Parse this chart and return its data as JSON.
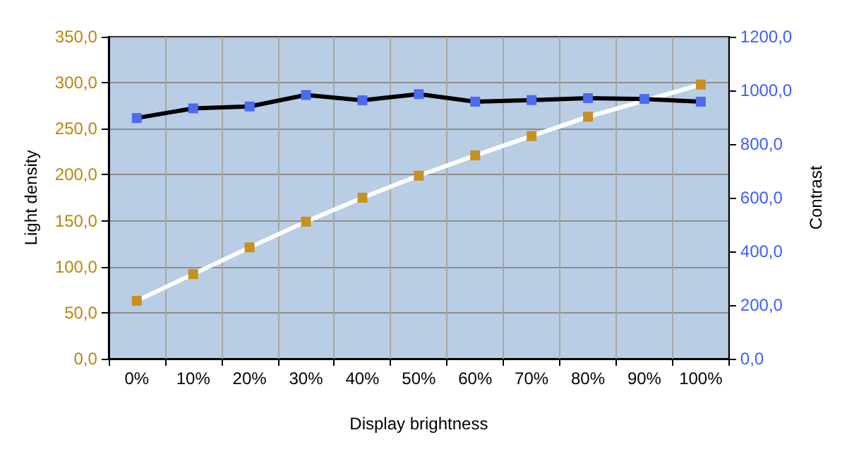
{
  "chart_data": {
    "type": "line",
    "xlabel": "Display brightness",
    "ylabel": "Light density",
    "y2label": "Contrast",
    "categories": [
      "0%",
      "10%",
      "20%",
      "30%",
      "40%",
      "50%",
      "60%",
      "70%",
      "80%",
      "90%",
      "100%"
    ],
    "series": [
      {
        "color": "#ffffff",
        "values": [
          63,
          92,
          121,
          149,
          175,
          199,
          221,
          242,
          263,
          null,
          298
        ]
      },
      {
        "color": "#000000",
        "axis": "y2",
        "values": [
          897,
          933,
          940,
          983,
          963,
          986,
          958,
          964,
          971,
          968,
          958
        ]
      }
    ],
    "ylim": [
      0,
      350
    ],
    "yticks": [
      {
        "value": 0,
        "label": "0,0"
      },
      {
        "value": 50,
        "label": "50,0"
      },
      {
        "value": 100,
        "label": "100,0"
      },
      {
        "value": 150,
        "label": "150,0"
      },
      {
        "value": 200,
        "label": "200,0"
      },
      {
        "value": 250,
        "label": "250,0"
      },
      {
        "value": 300,
        "label": "300,0"
      },
      {
        "value": 350,
        "label": "350,0"
      }
    ],
    "y2lim": [
      0,
      1200
    ],
    "y2ticks": [
      {
        "value": 0,
        "label": "0,0"
      },
      {
        "value": 200,
        "label": "200,0"
      },
      {
        "value": 400,
        "label": "400,0"
      },
      {
        "value": 600,
        "label": "600,0"
      },
      {
        "value": 800,
        "label": "800,0"
      },
      {
        "value": 1000,
        "label": "1000,0"
      },
      {
        "value": 1200,
        "label": "1200,0"
      }
    ],
    "grid": true,
    "marker": "square",
    "line_style": "solid"
  }
}
